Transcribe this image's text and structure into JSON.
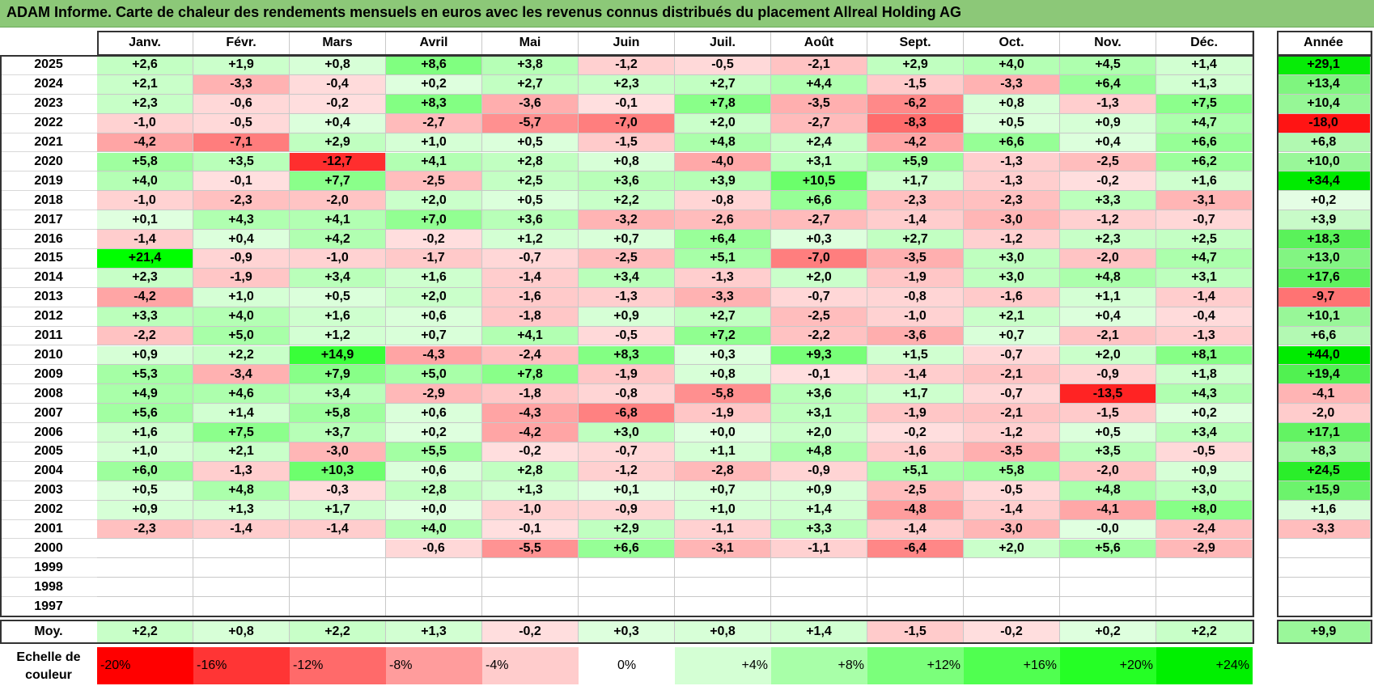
{
  "title": "ADAM Informe. Carte de chaleur des rendements mensuels en euros avec les revenus connus distribués du placement Allreal Holding AG",
  "chart_data": {
    "type": "heatmap",
    "months": [
      "Janv.",
      "Févr.",
      "Mars",
      "Avril",
      "Mai",
      "Juin",
      "Juil.",
      "Août",
      "Sept.",
      "Oct.",
      "Nov.",
      "Déc."
    ],
    "annual_header": "Année",
    "average_label": "Moy.",
    "rows": [
      {
        "year": "2025",
        "values": [
          "+2,6",
          "+1,9",
          "+0,8",
          "+8,6",
          "+3,8",
          "-1,2",
          "-0,5",
          "-2,1",
          "+2,9",
          "+4,0",
          "+4,5",
          "+1,4"
        ],
        "annual": "+29,1"
      },
      {
        "year": "2024",
        "values": [
          "+2,1",
          "-3,3",
          "-0,4",
          "+0,2",
          "+2,7",
          "+2,3",
          "+2,7",
          "+4,4",
          "-1,5",
          "-3,3",
          "+6,4",
          "+1,3"
        ],
        "annual": "+13,4"
      },
      {
        "year": "2023",
        "values": [
          "+2,3",
          "-0,6",
          "-0,2",
          "+8,3",
          "-3,6",
          "-0,1",
          "+7,8",
          "-3,5",
          "-6,2",
          "+0,8",
          "-1,3",
          "+7,5"
        ],
        "annual": "+10,4"
      },
      {
        "year": "2022",
        "values": [
          "-1,0",
          "-0,5",
          "+0,4",
          "-2,7",
          "-5,7",
          "-7,0",
          "+2,0",
          "-2,7",
          "-8,3",
          "+0,5",
          "+0,9",
          "+4,7"
        ],
        "annual": "-18,0"
      },
      {
        "year": "2021",
        "values": [
          "-4,2",
          "-7,1",
          "+2,9",
          "+1,0",
          "+0,5",
          "-1,5",
          "+4,8",
          "+2,4",
          "-4,2",
          "+6,6",
          "+0,4",
          "+6,6"
        ],
        "annual": "+6,8"
      },
      {
        "year": "2020",
        "values": [
          "+5,8",
          "+3,5",
          "-12,7",
          "+4,1",
          "+2,8",
          "+0,8",
          "-4,0",
          "+3,1",
          "+5,9",
          "-1,3",
          "-2,5",
          "+6,2"
        ],
        "annual": "+10,0"
      },
      {
        "year": "2019",
        "values": [
          "+4,0",
          "-0,1",
          "+7,7",
          "-2,5",
          "+2,5",
          "+3,6",
          "+3,9",
          "+10,5",
          "+1,7",
          "-1,3",
          "-0,2",
          "+1,6"
        ],
        "annual": "+34,4"
      },
      {
        "year": "2018",
        "values": [
          "-1,0",
          "-2,3",
          "-2,0",
          "+2,0",
          "+0,5",
          "+2,2",
          "-0,8",
          "+6,6",
          "-2,3",
          "-2,3",
          "+3,3",
          "-3,1"
        ],
        "annual": "+0,2"
      },
      {
        "year": "2017",
        "values": [
          "+0,1",
          "+4,3",
          "+4,1",
          "+7,0",
          "+3,6",
          "-3,2",
          "-2,6",
          "-2,7",
          "-1,4",
          "-3,0",
          "-1,2",
          "-0,7"
        ],
        "annual": "+3,9"
      },
      {
        "year": "2016",
        "values": [
          "-1,4",
          "+0,4",
          "+4,2",
          "-0,2",
          "+1,2",
          "+0,7",
          "+6,4",
          "+0,3",
          "+2,7",
          "-1,2",
          "+2,3",
          "+2,5"
        ],
        "annual": "+18,3"
      },
      {
        "year": "2015",
        "values": [
          "+21,4",
          "-0,9",
          "-1,0",
          "-1,7",
          "-0,7",
          "-2,5",
          "+5,1",
          "-7,0",
          "-3,5",
          "+3,0",
          "-2,0",
          "+4,7"
        ],
        "annual": "+13,0"
      },
      {
        "year": "2014",
        "values": [
          "+2,3",
          "-1,9",
          "+3,4",
          "+1,6",
          "-1,4",
          "+3,4",
          "-1,3",
          "+2,0",
          "-1,9",
          "+3,0",
          "+4,8",
          "+3,1"
        ],
        "annual": "+17,6"
      },
      {
        "year": "2013",
        "values": [
          "-4,2",
          "+1,0",
          "+0,5",
          "+2,0",
          "-1,6",
          "-1,3",
          "-3,3",
          "-0,7",
          "-0,8",
          "-1,6",
          "+1,1",
          "-1,4"
        ],
        "annual": "-9,7"
      },
      {
        "year": "2012",
        "values": [
          "+3,3",
          "+4,0",
          "+1,6",
          "+0,6",
          "-1,8",
          "+0,9",
          "+2,7",
          "-2,5",
          "-1,0",
          "+2,1",
          "+0,4",
          "-0,4"
        ],
        "annual": "+10,1"
      },
      {
        "year": "2011",
        "values": [
          "-2,2",
          "+5,0",
          "+1,2",
          "+0,7",
          "+4,1",
          "-0,5",
          "+7,2",
          "-2,2",
          "-3,6",
          "+0,7",
          "-2,1",
          "-1,3"
        ],
        "annual": "+6,6"
      },
      {
        "year": "2010",
        "values": [
          "+0,9",
          "+2,2",
          "+14,9",
          "-4,3",
          "-2,4",
          "+8,3",
          "+0,3",
          "+9,3",
          "+1,5",
          "-0,7",
          "+2,0",
          "+8,1"
        ],
        "annual": "+44,0"
      },
      {
        "year": "2009",
        "values": [
          "+5,3",
          "-3,4",
          "+7,9",
          "+5,0",
          "+7,8",
          "-1,9",
          "+0,8",
          "-0,1",
          "-1,4",
          "-2,1",
          "-0,9",
          "+1,8"
        ],
        "annual": "+19,4"
      },
      {
        "year": "2008",
        "values": [
          "+4,9",
          "+4,6",
          "+3,4",
          "-2,9",
          "-1,8",
          "-0,8",
          "-5,8",
          "+3,6",
          "+1,7",
          "-0,7",
          "-13,5",
          "+4,3"
        ],
        "annual": "-4,1"
      },
      {
        "year": "2007",
        "values": [
          "+5,6",
          "+1,4",
          "+5,8",
          "+0,6",
          "-4,3",
          "-6,8",
          "-1,9",
          "+3,1",
          "-1,9",
          "-2,1",
          "-1,5",
          "+0,2"
        ],
        "annual": "-2,0"
      },
      {
        "year": "2006",
        "values": [
          "+1,6",
          "+7,5",
          "+3,7",
          "+0,2",
          "-4,2",
          "+3,0",
          "+0,0",
          "+2,0",
          "-0,2",
          "-1,2",
          "+0,5",
          "+3,4"
        ],
        "annual": "+17,1"
      },
      {
        "year": "2005",
        "values": [
          "+1,0",
          "+2,1",
          "-3,0",
          "+5,5",
          "-0,2",
          "-0,7",
          "+1,1",
          "+4,8",
          "-1,6",
          "-3,5",
          "+3,5",
          "-0,5"
        ],
        "annual": "+8,3"
      },
      {
        "year": "2004",
        "values": [
          "+6,0",
          "-1,3",
          "+10,3",
          "+0,6",
          "+2,8",
          "-1,2",
          "-2,8",
          "-0,9",
          "+5,1",
          "+5,8",
          "-2,0",
          "+0,9"
        ],
        "annual": "+24,5"
      },
      {
        "year": "2003",
        "values": [
          "+0,5",
          "+4,8",
          "-0,3",
          "+2,8",
          "+1,3",
          "+0,1",
          "+0,7",
          "+0,9",
          "-2,5",
          "-0,5",
          "+4,8",
          "+3,0"
        ],
        "annual": "+15,9"
      },
      {
        "year": "2002",
        "values": [
          "+0,9",
          "+1,3",
          "+1,7",
          "+0,0",
          "-1,0",
          "-0,9",
          "+1,0",
          "+1,4",
          "-4,8",
          "-1,4",
          "-4,1",
          "+8,0"
        ],
        "annual": "+1,6"
      },
      {
        "year": "2001",
        "values": [
          "-2,3",
          "-1,4",
          "-1,4",
          "+4,0",
          "-0,1",
          "+2,9",
          "-1,1",
          "+3,3",
          "-1,4",
          "-3,0",
          "-0,0",
          "-2,4"
        ],
        "annual": "-3,3"
      },
      {
        "year": "2000",
        "values": [
          "",
          "",
          "",
          "-0,6",
          "-5,5",
          "+6,6",
          "-3,1",
          "-1,1",
          "-6,4",
          "+2,0",
          "+5,6",
          "-2,9"
        ],
        "annual": ""
      },
      {
        "year": "1999",
        "values": [
          "",
          "",
          "",
          "",
          "",
          "",
          "",
          "",
          "",
          "",
          "",
          ""
        ],
        "annual": ""
      },
      {
        "year": "1998",
        "values": [
          "",
          "",
          "",
          "",
          "",
          "",
          "",
          "",
          "",
          "",
          "",
          ""
        ],
        "annual": ""
      },
      {
        "year": "1997",
        "values": [
          "",
          "",
          "",
          "",
          "",
          "",
          "",
          "",
          "",
          "",
          "",
          ""
        ],
        "annual": ""
      }
    ],
    "averages": [
      "+2,2",
      "+0,8",
      "+2,2",
      "+1,3",
      "-0,2",
      "+0,3",
      "+0,8",
      "+1,4",
      "-1,5",
      "-0,2",
      "+0,2",
      "+2,2"
    ],
    "average_annual": "+9,9",
    "scale": {
      "label_line1": "Echelle de",
      "label_line2": "couleur",
      "steps": [
        {
          "label": "-20%",
          "value": -20,
          "color": "#ff0000"
        },
        {
          "label": "-16%",
          "value": -16,
          "color": "#ff3535"
        },
        {
          "label": "-12%",
          "value": -12,
          "color": "#ff6a6a"
        },
        {
          "label": "-8%",
          "value": -8,
          "color": "#ff9c9c"
        },
        {
          "label": "-4%",
          "value": -4,
          "color": "#ffcccc"
        },
        {
          "label": "0%",
          "value": 0,
          "color": "#ffffff"
        },
        {
          "label": "+4%",
          "value": 4,
          "color": "#d4ffd4"
        },
        {
          "label": "+8%",
          "value": 8,
          "color": "#a8ffa8"
        },
        {
          "label": "+12%",
          "value": 12,
          "color": "#7bff7b"
        },
        {
          "label": "+16%",
          "value": 16,
          "color": "#50ff50"
        },
        {
          "label": "+20%",
          "value": 20,
          "color": "#25ff25"
        },
        {
          "label": "+24%",
          "value": 24,
          "color": "#00f000"
        }
      ]
    }
  }
}
